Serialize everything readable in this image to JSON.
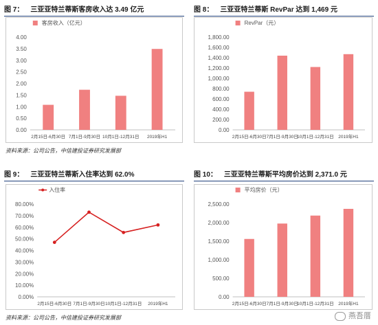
{
  "figures": [
    {
      "number": "图 7：",
      "title": "三亚亚特兰蒂斯客房收入达 3.49 亿元"
    },
    {
      "number": "图 8：",
      "title": "三亚亚特兰蒂斯 RevPar 达到 1,469 元"
    },
    {
      "number": "图 9：",
      "title": "三亚亚特兰蒂斯入住率达到 62.0%"
    },
    {
      "number": "图 10：",
      "title": "三亚亚特兰蒂斯平均房价达到 2,371.0 元"
    }
  ],
  "sources": {
    "top": "资料来源：公司公告，中信建投证券研究发展部",
    "bottom": "资料来源：公司公告，中信建投证券研究发展部"
  },
  "watermark": "燕吾厝",
  "chart_data": [
    {
      "type": "bar",
      "categories": [
        "2月15日-6月30日",
        "7月1日-9月30日",
        "10月1日-12月31日",
        "2019年H1"
      ],
      "series": [
        {
          "name": "客房收入（亿元）",
          "values": [
            1.08,
            1.73,
            1.47,
            3.49
          ]
        }
      ],
      "ylim": [
        0,
        4
      ],
      "yticks": [
        0,
        0.5,
        1,
        1.5,
        2,
        2.5,
        3,
        3.5,
        4
      ],
      "decimals": 2,
      "legend": "top-left",
      "grid": false,
      "color": "#f08080"
    },
    {
      "type": "bar",
      "categories": [
        "2月15日-6月30日",
        "7月1日-9月30日",
        "10月1日-12月31日",
        "2019年H1"
      ],
      "series": [
        {
          "name": "RevPar（元）",
          "values": [
            740,
            1440,
            1220,
            1469
          ]
        }
      ],
      "ylim": [
        0,
        1800
      ],
      "yticks": [
        0,
        200,
        400,
        600,
        800,
        1000,
        1200,
        1400,
        1600,
        1800
      ],
      "decimals": 2,
      "legend": "top-left",
      "grid": false,
      "color": "#f08080"
    },
    {
      "type": "line",
      "categories": [
        "2月15日-6月30日",
        "7月1日-9月30日",
        "10月1日-12月31日",
        "2019年H1"
      ],
      "series": [
        {
          "name": "入住率",
          "values": [
            47.0,
            73.0,
            55.5,
            62.0
          ]
        }
      ],
      "ylim": [
        0,
        80
      ],
      "yticks": [
        0,
        10,
        20,
        30,
        40,
        50,
        60,
        70,
        80
      ],
      "decimals": 2,
      "unit": "%",
      "legend": "top-left",
      "grid": false,
      "color": "#d62020"
    },
    {
      "type": "bar",
      "categories": [
        "2月15日-6月30日",
        "7月1日-9月30日",
        "10月1日-12月31日",
        "2019年H1"
      ],
      "series": [
        {
          "name": "平均房价（元）",
          "values": [
            1560,
            1975,
            2190,
            2371.0
          ]
        }
      ],
      "ylim": [
        0,
        2500
      ],
      "yticks": [
        0,
        500,
        1000,
        1500,
        2000,
        2500
      ],
      "decimals": 2,
      "legend": "top-left",
      "grid": false,
      "color": "#f08080"
    }
  ]
}
